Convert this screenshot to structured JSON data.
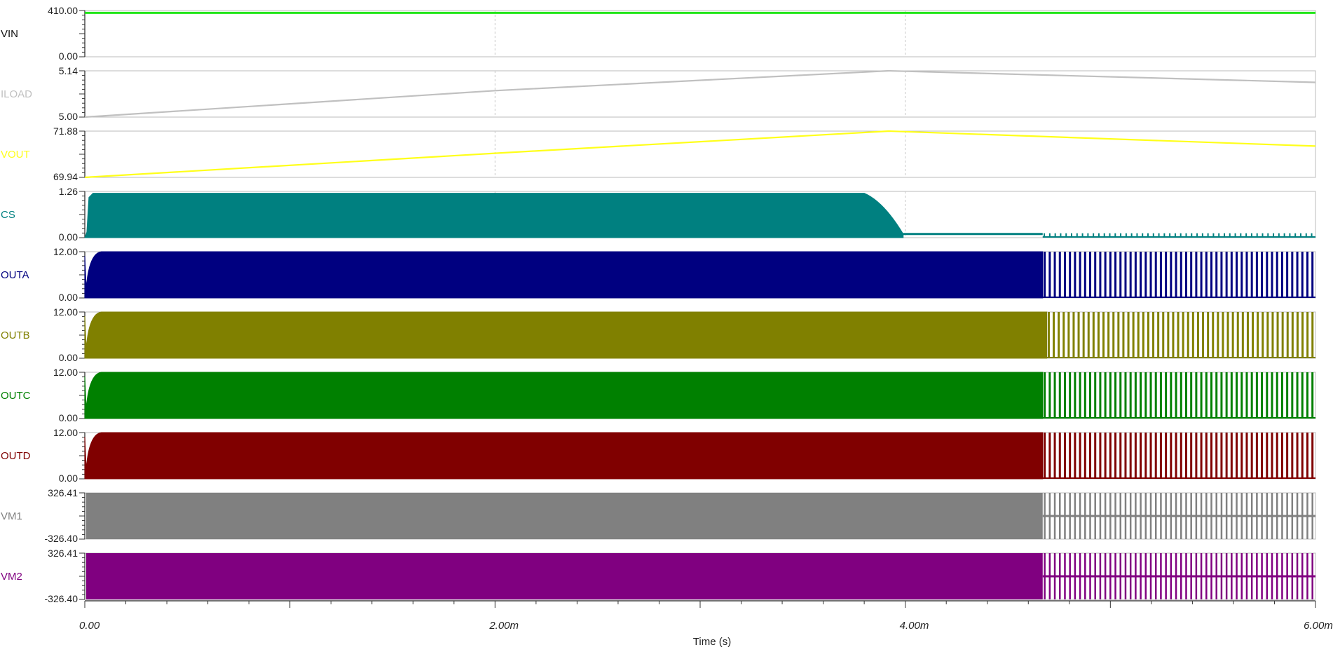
{
  "chart_data": {
    "type": "line",
    "x_label": "Time (s)",
    "x_ticks": [
      {
        "value": 0,
        "label": "0.00"
      },
      {
        "value": 0.002,
        "label": "2.00m"
      },
      {
        "value": 0.004,
        "label": "4.00m"
      },
      {
        "value": 0.006,
        "label": "6.00m"
      }
    ],
    "x_range": [
      0,
      0.006
    ],
    "vertical_gridlines_at": [
      0.002,
      0.004
    ],
    "series": [
      {
        "name": "VIN",
        "color": "#22e61a",
        "y_range": [
          0,
          410
        ],
        "tick_labels": {
          "top": "410.00",
          "bottom": "0.00"
        },
        "shape": "constant",
        "value": 389
      },
      {
        "name": "ILOAD",
        "color": "#c0c0c0",
        "y_range": [
          5.0,
          5.14
        ],
        "tick_labels": {
          "top": "5.14",
          "bottom": "5.00"
        },
        "shape": "polyline",
        "points": [
          [
            0,
            5.0
          ],
          [
            0.002,
            5.08
          ],
          [
            0.00392,
            5.14
          ],
          [
            0.006,
            5.105
          ]
        ]
      },
      {
        "name": "VOUT",
        "color": "#ffff1a",
        "y_range": [
          69.94,
          71.88
        ],
        "tick_labels": {
          "top": "71.88",
          "bottom": "69.94"
        },
        "shape": "polyline",
        "points": [
          [
            0,
            69.94
          ],
          [
            0.002,
            70.95
          ],
          [
            0.00392,
            71.88
          ],
          [
            0.006,
            71.25
          ]
        ]
      },
      {
        "name": "CS",
        "color": "#008080",
        "y_range": [
          0,
          1.26
        ],
        "tick_labels": {
          "top": "1.26",
          "bottom": "0.00"
        },
        "shape": "cs_band",
        "active_level": 1.21,
        "fall_start": 0.0038,
        "fall_end": 0.00399,
        "low_level": 0.1,
        "burst_start": 0.00467,
        "burst_level": 0.12,
        "burst_count": 50
      },
      {
        "name": "OUTA",
        "color": "#000080",
        "y_range": [
          0,
          12
        ],
        "tick_labels": {
          "top": "12.00",
          "bottom": "0.00"
        },
        "shape": "switching",
        "level": 12,
        "switching_end": 0.00467,
        "pulse_count": 54
      },
      {
        "name": "OUTB",
        "color": "#808000",
        "y_range": [
          0,
          12
        ],
        "tick_labels": {
          "top": "12.00",
          "bottom": "0.00"
        },
        "shape": "switching",
        "level": 12,
        "switching_end": 0.00469,
        "pulse_count": 54
      },
      {
        "name": "OUTC",
        "color": "#008000",
        "y_range": [
          0,
          12
        ],
        "tick_labels": {
          "top": "12.00",
          "bottom": "0.00"
        },
        "shape": "switching",
        "level": 12,
        "switching_end": 0.00467,
        "pulse_count": 54
      },
      {
        "name": "OUTD",
        "color": "#800000",
        "y_range": [
          0,
          12
        ],
        "tick_labels": {
          "top": "12.00",
          "bottom": "0.00"
        },
        "shape": "switching",
        "level": 12,
        "switching_end": 0.00467,
        "pulse_count": 54
      },
      {
        "name": "VM1",
        "color": "#808080",
        "y_range": [
          -326.4,
          326.41
        ],
        "tick_labels": {
          "top": "326.41",
          "bottom": "-326.40"
        },
        "shape": "bipolar",
        "switching_end": 0.00467,
        "pulse_count": 54,
        "mid_level": 0
      },
      {
        "name": "VM2",
        "color": "#800080",
        "y_range": [
          -326.4,
          326.41
        ],
        "tick_labels": {
          "top": "326.41",
          "bottom": "-326.40"
        },
        "shape": "bipolar",
        "switching_end": 0.00467,
        "pulse_count": 54,
        "mid_level": 0
      }
    ]
  }
}
